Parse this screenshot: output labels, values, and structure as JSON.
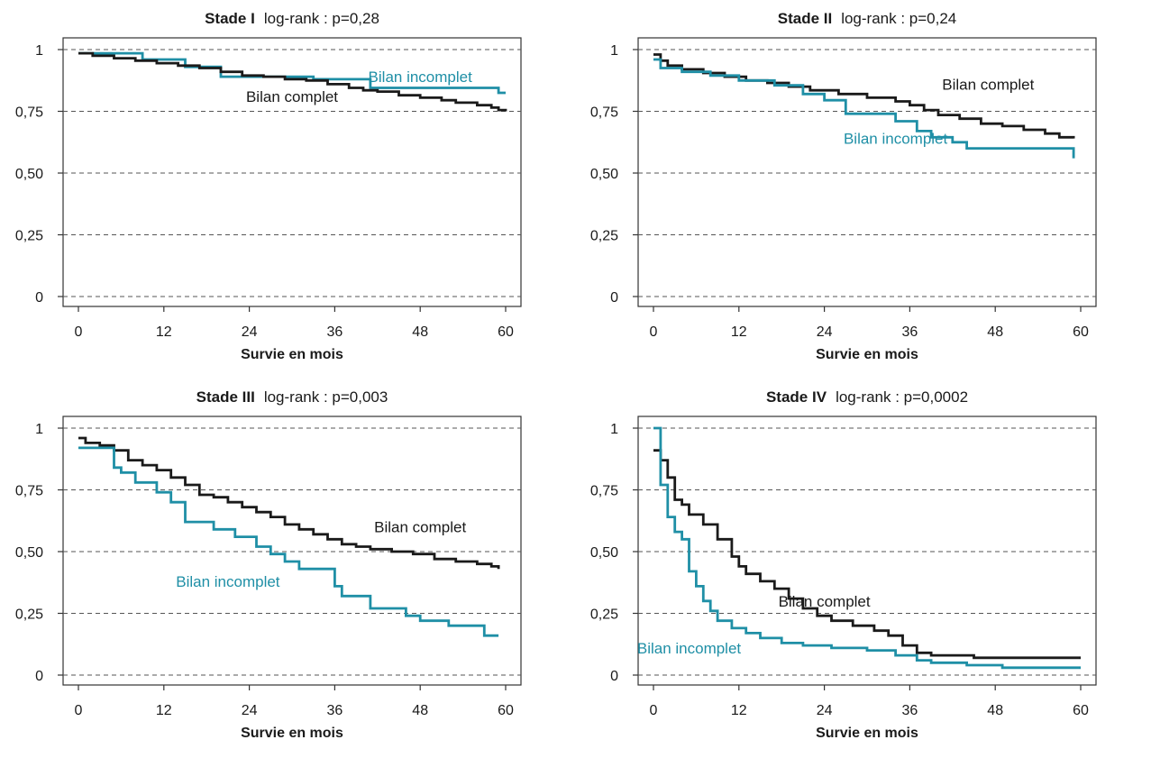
{
  "colors": {
    "complet": "#1a1a1a",
    "incomplet": "#1f8fa6",
    "grid": "#555555",
    "axis": "#333333"
  },
  "chart_data": [
    {
      "type": "line",
      "title_bold": "Stade I",
      "title_rest": "log-rank : p=0,28",
      "xlabel": "Survie en mois",
      "ylabel": "",
      "xlim": [
        0,
        60
      ],
      "ylim": [
        0,
        1
      ],
      "xticks": [
        0,
        12,
        24,
        36,
        48,
        60
      ],
      "xtick_labels": [
        "0",
        "12",
        "24",
        "36",
        "48",
        "60"
      ],
      "yticks": [
        0,
        0.25,
        0.5,
        0.75,
        1
      ],
      "ytick_labels": [
        "0",
        "0,25",
        "0,50",
        "0,75",
        "1"
      ],
      "grid": "horizontal dashed",
      "series": [
        {
          "name": "Bilan incomplet",
          "color_key": "incomplet",
          "step": true,
          "x": [
            0,
            9,
            15,
            20,
            33,
            41,
            59,
            60
          ],
          "y": [
            0.985,
            0.96,
            0.93,
            0.89,
            0.88,
            0.845,
            0.825,
            0.825
          ]
        },
        {
          "name": "Bilan complet",
          "color_key": "complet",
          "step": true,
          "x": [
            0,
            2,
            5,
            8,
            11,
            14,
            17,
            20,
            23,
            26,
            29,
            32,
            35,
            38,
            40,
            42,
            45,
            48,
            51,
            53,
            56,
            58,
            59,
            60
          ],
          "y": [
            0.985,
            0.975,
            0.965,
            0.955,
            0.945,
            0.935,
            0.925,
            0.91,
            0.895,
            0.89,
            0.88,
            0.875,
            0.86,
            0.845,
            0.835,
            0.83,
            0.815,
            0.805,
            0.795,
            0.785,
            0.775,
            0.765,
            0.755,
            0.75
          ]
        }
      ],
      "annotations": [
        {
          "text": "Bilan incomplet",
          "x": 48,
          "y": 0.89,
          "color_key": "incomplet"
        },
        {
          "text": "Bilan complet",
          "x": 30,
          "y": 0.81,
          "color_key": "complet"
        }
      ]
    },
    {
      "type": "line",
      "title_bold": "Stade II",
      "title_rest": "log-rank : p=0,24",
      "xlabel": "Survie en mois",
      "ylabel": "",
      "xlim": [
        0,
        60
      ],
      "ylim": [
        0,
        1
      ],
      "xticks": [
        0,
        12,
        24,
        36,
        48,
        60
      ],
      "xtick_labels": [
        "0",
        "12",
        "24",
        "36",
        "48",
        "60"
      ],
      "yticks": [
        0,
        0.25,
        0.5,
        0.75,
        1
      ],
      "ytick_labels": [
        "0",
        "0,25",
        "0,50",
        "0,75",
        "1"
      ],
      "grid": "horizontal dashed",
      "series": [
        {
          "name": "Bilan complet",
          "color_key": "complet",
          "step": true,
          "x": [
            0,
            1,
            2,
            4,
            7,
            10,
            13,
            16,
            19,
            22,
            26,
            30,
            34,
            36,
            38,
            40,
            43,
            46,
            49,
            52,
            55,
            57,
            59
          ],
          "y": [
            0.98,
            0.955,
            0.935,
            0.92,
            0.905,
            0.89,
            0.875,
            0.865,
            0.85,
            0.835,
            0.82,
            0.805,
            0.79,
            0.775,
            0.755,
            0.735,
            0.72,
            0.7,
            0.69,
            0.675,
            0.66,
            0.645,
            0.64
          ]
        },
        {
          "name": "Bilan incomplet",
          "color_key": "incomplet",
          "step": true,
          "x": [
            0,
            1,
            4,
            8,
            12,
            17,
            21,
            24,
            27,
            34,
            37,
            39,
            42,
            44,
            59
          ],
          "y": [
            0.96,
            0.925,
            0.91,
            0.895,
            0.875,
            0.855,
            0.82,
            0.795,
            0.74,
            0.71,
            0.67,
            0.645,
            0.625,
            0.6,
            0.56
          ]
        }
      ],
      "annotations": [
        {
          "text": "Bilan complet",
          "x": 47,
          "y": 0.86,
          "color_key": "complet"
        },
        {
          "text": "Bilan incomplet",
          "x": 34,
          "y": 0.64,
          "color_key": "incomplet"
        }
      ]
    },
    {
      "type": "line",
      "title_bold": "Stade III",
      "title_rest": "log-rank : p=0,003",
      "xlabel": "Survie en mois",
      "ylabel": "",
      "xlim": [
        0,
        60
      ],
      "ylim": [
        0,
        1
      ],
      "xticks": [
        0,
        12,
        24,
        36,
        48,
        60
      ],
      "xtick_labels": [
        "0",
        "12",
        "24",
        "36",
        "48",
        "60"
      ],
      "yticks": [
        0,
        0.25,
        0.5,
        0.75,
        1
      ],
      "ytick_labels": [
        "0",
        "0,25",
        "0,50",
        "0,75",
        "1"
      ],
      "grid": "horizontal dashed",
      "series": [
        {
          "name": "Bilan complet",
          "color_key": "complet",
          "step": true,
          "x": [
            0,
            1,
            3,
            5,
            7,
            9,
            11,
            13,
            15,
            17,
            19,
            21,
            23,
            25,
            27,
            29,
            31,
            33,
            35,
            37,
            39,
            41,
            44,
            47,
            50,
            53,
            56,
            58,
            59
          ],
          "y": [
            0.96,
            0.94,
            0.93,
            0.91,
            0.87,
            0.85,
            0.83,
            0.8,
            0.77,
            0.73,
            0.72,
            0.7,
            0.68,
            0.66,
            0.64,
            0.61,
            0.59,
            0.57,
            0.55,
            0.53,
            0.52,
            0.51,
            0.5,
            0.49,
            0.47,
            0.46,
            0.45,
            0.44,
            0.43
          ]
        },
        {
          "name": "Bilan incomplet",
          "color_key": "incomplet",
          "step": true,
          "x": [
            0,
            5,
            6,
            8,
            11,
            13,
            15,
            19,
            22,
            25,
            27,
            29,
            31,
            36,
            37,
            41,
            46,
            48,
            50,
            52,
            57,
            59
          ],
          "y": [
            0.92,
            0.84,
            0.82,
            0.78,
            0.74,
            0.7,
            0.62,
            0.59,
            0.56,
            0.52,
            0.49,
            0.46,
            0.43,
            0.36,
            0.32,
            0.27,
            0.24,
            0.22,
            0.22,
            0.2,
            0.16,
            0.16
          ]
        }
      ],
      "annotations": [
        {
          "text": "Bilan complet",
          "x": 48,
          "y": 0.6,
          "color_key": "complet"
        },
        {
          "text": "Bilan incomplet",
          "x": 21,
          "y": 0.38,
          "color_key": "incomplet"
        }
      ]
    },
    {
      "type": "line",
      "title_bold": "Stade IV",
      "title_rest": "log-rank : p=0,0002",
      "xlabel": "Survie en mois",
      "ylabel": "",
      "xlim": [
        0,
        60
      ],
      "ylim": [
        0,
        1
      ],
      "xticks": [
        0,
        12,
        24,
        36,
        48,
        60
      ],
      "xtick_labels": [
        "0",
        "12",
        "24",
        "36",
        "48",
        "60"
      ],
      "yticks": [
        0,
        0.25,
        0.5,
        0.75,
        1
      ],
      "ytick_labels": [
        "0",
        "0,25",
        "0,50",
        "0,75",
        "1"
      ],
      "grid": "horizontal dashed",
      "series": [
        {
          "name": "Bilan complet",
          "color_key": "complet",
          "step": true,
          "x": [
            0,
            1,
            2,
            3,
            4,
            5,
            7,
            9,
            11,
            12,
            13,
            15,
            17,
            19,
            21,
            23,
            25,
            28,
            31,
            33,
            35,
            37,
            39,
            45,
            60
          ],
          "y": [
            0.91,
            0.87,
            0.8,
            0.71,
            0.69,
            0.65,
            0.61,
            0.55,
            0.48,
            0.44,
            0.41,
            0.38,
            0.35,
            0.31,
            0.27,
            0.24,
            0.22,
            0.2,
            0.18,
            0.16,
            0.12,
            0.09,
            0.08,
            0.07,
            0.07
          ]
        },
        {
          "name": "Bilan incomplet",
          "color_key": "incomplet",
          "step": true,
          "x": [
            0,
            1,
            2,
            3,
            4,
            5,
            6,
            7,
            8,
            9,
            11,
            13,
            15,
            18,
            21,
            25,
            30,
            34,
            37,
            39,
            44,
            49,
            60
          ],
          "y": [
            1,
            0.77,
            0.64,
            0.58,
            0.55,
            0.42,
            0.36,
            0.3,
            0.26,
            0.22,
            0.19,
            0.17,
            0.15,
            0.13,
            0.12,
            0.11,
            0.1,
            0.08,
            0.06,
            0.05,
            0.04,
            0.03,
            0.03
          ]
        }
      ],
      "annotations": [
        {
          "text": "Bilan complet",
          "x": 24,
          "y": 0.3,
          "color_key": "complet"
        },
        {
          "text": "Bilan incomplet",
          "x": 5,
          "y": 0.11,
          "color_key": "incomplet"
        }
      ]
    }
  ]
}
